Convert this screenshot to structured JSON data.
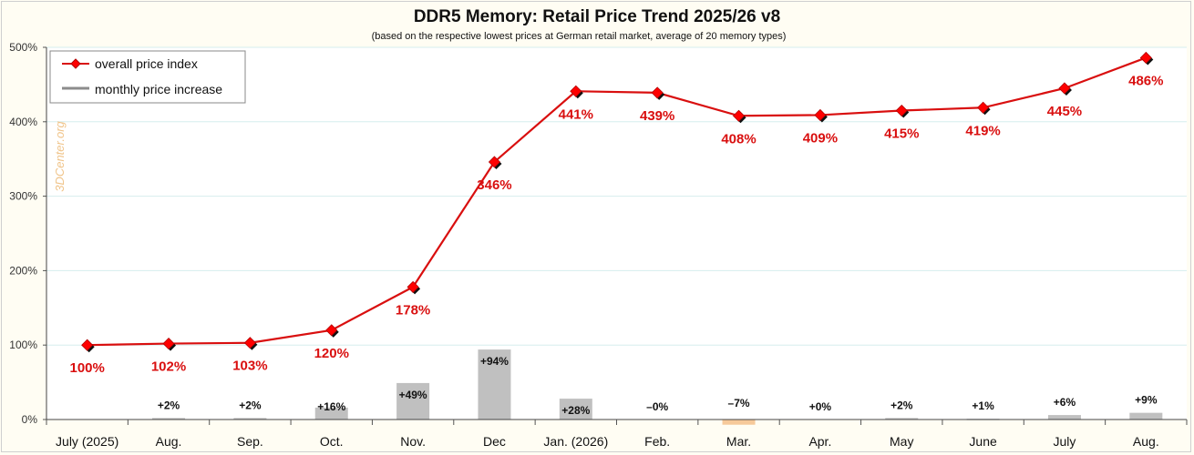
{
  "chart_data": {
    "type": "line",
    "title": "DDR5 Memory: Retail Price Trend 2025/26 v8",
    "subtitle": "(based on the respective lowest prices at German retail market, average of 20 memory types)",
    "watermark": "3DCenter.org",
    "categories": [
      "July (2025)",
      "Aug.",
      "Sep.",
      "Oct.",
      "Nov.",
      "Dec",
      "Jan. (2026)",
      "Feb.",
      "Mar.",
      "Apr.",
      "May",
      "June",
      "July",
      "Aug."
    ],
    "ylim": [
      0,
      500
    ],
    "yticks": [
      "0%",
      "100%",
      "200%",
      "300%",
      "400%",
      "500%"
    ],
    "grid": true,
    "legend_position": "top-left",
    "legend": [
      "overall price index",
      "monthly price increase"
    ],
    "series": [
      {
        "name": "overall price index",
        "type": "line",
        "color": "#d90f0f",
        "values": [
          100,
          102,
          103,
          120,
          178,
          346,
          441,
          439,
          408,
          409,
          415,
          419,
          445,
          486
        ],
        "labels": [
          "100%",
          "102%",
          "103%",
          "120%",
          "178%",
          "346%",
          "441%",
          "439%",
          "408%",
          "409%",
          "415%",
          "419%",
          "445%",
          "486%"
        ]
      },
      {
        "name": "monthly price increase",
        "type": "bar",
        "color": "#c0c0c0",
        "negative_color": "#f6c99a",
        "values": [
          null,
          2,
          2,
          16,
          49,
          94,
          28,
          0,
          -7,
          0,
          2,
          1,
          6,
          9
        ],
        "labels": [
          "",
          "+2%",
          "+2%",
          "+16%",
          "+49%",
          "+94%",
          "+28%",
          "–0%",
          "–7%",
          "+0%",
          "+2%",
          "+1%",
          "+6%",
          "+9%"
        ]
      }
    ]
  }
}
